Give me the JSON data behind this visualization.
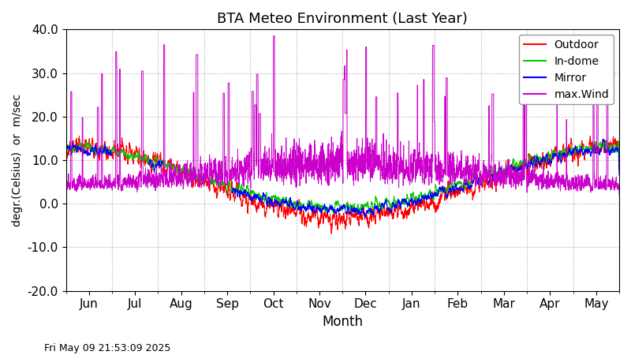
{
  "title": "BTA Meteo Environment (Last Year)",
  "xlabel": "Month",
  "ylabel": "degr.(Celsius)  or  m/sec",
  "timestamp": "Fri May 09 21:53:09 2025",
  "ylim": [
    -20.0,
    40.0
  ],
  "yticks": [
    -20.0,
    -10.0,
    0.0,
    10.0,
    20.0,
    30.0,
    40.0
  ],
  "month_labels": [
    "Jun",
    "Jul",
    "Aug",
    "Sep",
    "Oct",
    "Nov",
    "Dec",
    "Jan",
    "Feb",
    "Mar",
    "Apr",
    "May"
  ],
  "month_positions": [
    0.5,
    1.5,
    2.5,
    3.5,
    4.5,
    5.5,
    6.5,
    7.5,
    8.5,
    9.5,
    10.5,
    11.5
  ],
  "colors": {
    "outdoor": "#ff0000",
    "indome": "#00cc00",
    "mirror": "#0000ff",
    "wind": "#cc00cc"
  },
  "legend": [
    "Outdoor",
    "In-dome",
    "Mirror",
    "max.Wind"
  ],
  "background": "#ffffff",
  "grid_color": "#aaaaaa"
}
